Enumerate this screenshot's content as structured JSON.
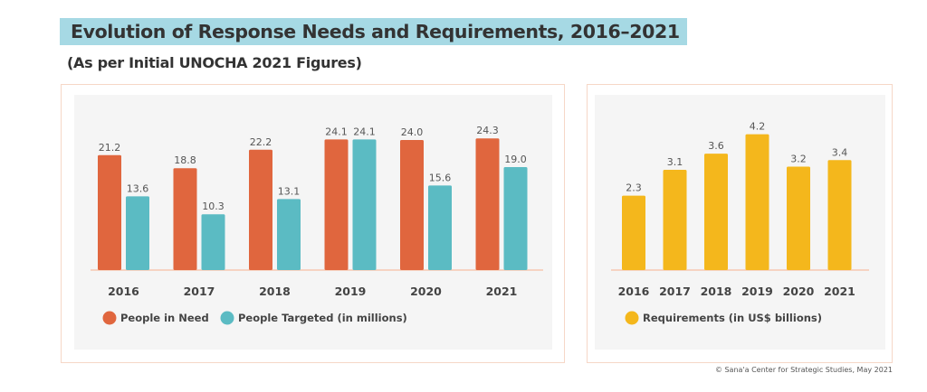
{
  "title": "Evolution of Response Needs and Requirements, 2016–2021",
  "subtitle": "(As per Initial UNOCHA 2021 Figures)",
  "footer": "© Sana'a Center for Strategic Studies, May 2021",
  "chart_data": [
    {
      "type": "bar",
      "title": "",
      "xlabel": "",
      "ylabel": "",
      "categories": [
        "2016",
        "2017",
        "2018",
        "2019",
        "2020",
        "2021"
      ],
      "series": [
        {
          "name": "People in Need",
          "color": "#e0663e",
          "values": [
            21.2,
            18.8,
            22.2,
            24.1,
            24.0,
            24.3
          ]
        },
        {
          "name": "People Targeted (in millions)",
          "color": "#5bbbc3",
          "values": [
            13.6,
            10.3,
            13.1,
            24.1,
            15.6,
            19.0
          ]
        }
      ],
      "ylim": [
        0,
        25
      ],
      "grid": false,
      "legend": "bottom-left",
      "data_labels": true
    },
    {
      "type": "bar",
      "title": "",
      "xlabel": "",
      "ylabel": "",
      "categories": [
        "2016",
        "2017",
        "2018",
        "2019",
        "2020",
        "2021"
      ],
      "series": [
        {
          "name": "Requirements (in US$ billions)",
          "color": "#f4b71c",
          "values": [
            2.3,
            3.1,
            3.6,
            4.2,
            3.2,
            3.4
          ]
        }
      ],
      "ylim": [
        0,
        4.5
      ],
      "grid": false,
      "legend": "bottom-left",
      "data_labels": true
    }
  ]
}
